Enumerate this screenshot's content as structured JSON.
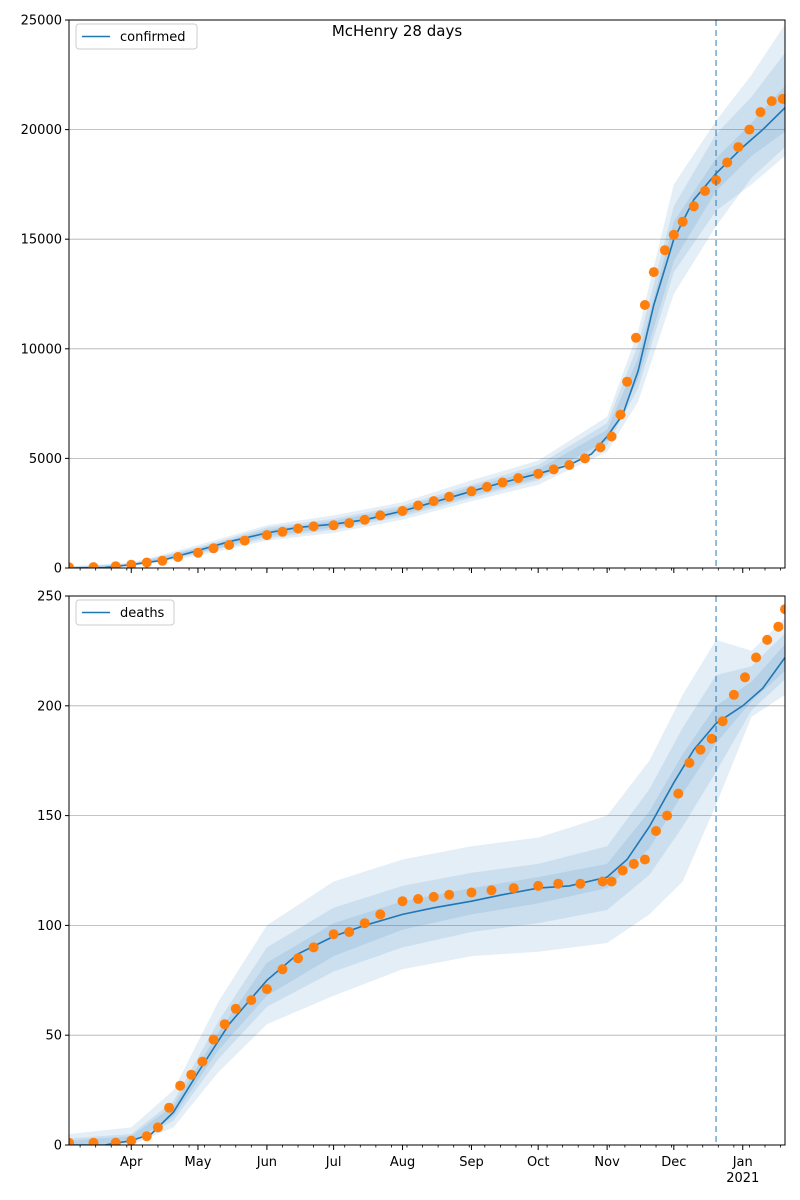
{
  "figure": {
    "title": "McHenry 28 days"
  },
  "colors": {
    "line": "#1f77b4",
    "points": "#ff7f0e",
    "band": "#1f77b4",
    "grid": "#b0b0b0",
    "axis": "#000000"
  },
  "chart_data": [
    {
      "type": "line",
      "panel": "top",
      "legend": {
        "label": "confirmed",
        "placement": "upper left"
      },
      "x_axis": {
        "type": "date",
        "range": [
          "2020-03-04",
          "2021-01-20"
        ],
        "tick_labels": [
          {
            "date": "2020-04-01",
            "label": "Apr"
          },
          {
            "date": "2020-05-01",
            "label": "May"
          },
          {
            "date": "2020-06-01",
            "label": "Jun"
          },
          {
            "date": "2020-07-01",
            "label": "Jul"
          },
          {
            "date": "2020-08-01",
            "label": "Aug"
          },
          {
            "date": "2020-09-01",
            "label": "Sep"
          },
          {
            "date": "2020-10-01",
            "label": "Oct"
          },
          {
            "date": "2020-11-01",
            "label": "Nov"
          },
          {
            "date": "2020-12-01",
            "label": "Dec"
          },
          {
            "date": "2021-01-01",
            "label": "Jan\n2021"
          }
        ]
      },
      "y_axis": {
        "range": [
          0,
          25000
        ],
        "ticks": [
          0,
          5000,
          10000,
          15000,
          20000,
          25000
        ],
        "grid": true
      },
      "forecast_start": "2020-12-20",
      "series": [
        {
          "name": "confirmed",
          "style": "line",
          "x": [
            "2020-03-04",
            "2020-03-20",
            "2020-04-01",
            "2020-04-15",
            "2020-05-01",
            "2020-05-15",
            "2020-06-01",
            "2020-06-15",
            "2020-07-01",
            "2020-07-15",
            "2020-08-01",
            "2020-08-15",
            "2020-09-01",
            "2020-09-15",
            "2020-10-01",
            "2020-10-15",
            "2020-10-25",
            "2020-11-01",
            "2020-11-08",
            "2020-11-15",
            "2020-11-22",
            "2020-12-01",
            "2020-12-10",
            "2020-12-20",
            "2021-01-01",
            "2021-01-10",
            "2021-01-20"
          ],
          "y": [
            0,
            20,
            150,
            350,
            800,
            1200,
            1600,
            1850,
            2000,
            2200,
            2600,
            3000,
            3500,
            3900,
            4300,
            4700,
            5200,
            6000,
            7000,
            9000,
            12000,
            15000,
            16800,
            18000,
            19200,
            20000,
            21000
          ]
        },
        {
          "name": "observed",
          "style": "points",
          "x": [
            "2020-03-04",
            "2020-03-15",
            "2020-03-25",
            "2020-04-01",
            "2020-04-08",
            "2020-04-15",
            "2020-04-22",
            "2020-05-01",
            "2020-05-08",
            "2020-05-15",
            "2020-05-22",
            "2020-06-01",
            "2020-06-08",
            "2020-06-15",
            "2020-06-22",
            "2020-07-01",
            "2020-07-08",
            "2020-07-15",
            "2020-07-22",
            "2020-08-01",
            "2020-08-08",
            "2020-08-15",
            "2020-08-22",
            "2020-09-01",
            "2020-09-08",
            "2020-09-15",
            "2020-09-22",
            "2020-10-01",
            "2020-10-08",
            "2020-10-15",
            "2020-10-22",
            "2020-10-29",
            "2020-11-03",
            "2020-11-07",
            "2020-11-10",
            "2020-11-14",
            "2020-11-18",
            "2020-11-22",
            "2020-11-27",
            "2020-12-01",
            "2020-12-05",
            "2020-12-10",
            "2020-12-15",
            "2020-12-20",
            "2020-12-25",
            "2020-12-30",
            "2021-01-04",
            "2021-01-09",
            "2021-01-14",
            "2021-01-19"
          ],
          "y": [
            30,
            40,
            80,
            150,
            250,
            330,
            500,
            700,
            900,
            1050,
            1250,
            1500,
            1650,
            1800,
            1900,
            1950,
            2050,
            2200,
            2400,
            2600,
            2850,
            3050,
            3250,
            3500,
            3700,
            3900,
            4100,
            4300,
            4500,
            4700,
            5000,
            5500,
            6000,
            7000,
            8500,
            10500,
            12000,
            13500,
            14500,
            15200,
            15800,
            16500,
            17200,
            17700,
            18500,
            19200,
            20000,
            20800,
            21300,
            21400
          ]
        }
      ],
      "bands": [
        {
          "x": [
            "2020-03-04",
            "2020-04-01",
            "2020-05-01",
            "2020-06-01",
            "2020-07-01",
            "2020-08-01",
            "2020-09-01",
            "2020-10-01",
            "2020-11-01",
            "2020-11-15",
            "2020-12-01",
            "2020-12-20",
            "2021-01-05",
            "2021-01-20"
          ],
          "lo": [
            0,
            100,
            650,
            1350,
            1750,
            2350,
            3200,
            4000,
            5600,
            8200,
            13500,
            16300,
            17500,
            18800
          ],
          "hi": [
            60,
            200,
            950,
            1850,
            2250,
            2850,
            3800,
            4700,
            6600,
            10200,
            16500,
            19800,
            21500,
            23500
          ]
        },
        {
          "x": [
            "2020-03-04",
            "2020-04-01",
            "2020-05-01",
            "2020-06-01",
            "2020-07-01",
            "2020-08-01",
            "2020-09-01",
            "2020-10-01",
            "2020-11-01",
            "2020-11-15",
            "2020-12-01",
            "2020-12-20",
            "2021-01-05",
            "2021-01-20"
          ],
          "lo": [
            0,
            80,
            550,
            1250,
            1600,
            2200,
            3050,
            3800,
            5300,
            7600,
            12500,
            15600,
            17800,
            19200
          ],
          "hi": [
            80,
            240,
            1050,
            1950,
            2400,
            3000,
            4000,
            4900,
            6900,
            10800,
            17500,
            20400,
            22500,
            24800
          ]
        },
        {
          "x": [
            "2020-03-04",
            "2020-04-01",
            "2020-05-01",
            "2020-06-01",
            "2020-07-01",
            "2020-08-01",
            "2020-09-01",
            "2020-10-01",
            "2020-11-01",
            "2020-11-15",
            "2020-12-01",
            "2020-12-20",
            "2021-01-05",
            "2021-01-20"
          ],
          "lo": [
            0,
            120,
            700,
            1450,
            1850,
            2450,
            3300,
            4100,
            5800,
            8600,
            14000,
            17200,
            18800,
            19900
          ],
          "hi": [
            40,
            180,
            900,
            1750,
            2150,
            2750,
            3700,
            4500,
            6300,
            9600,
            15800,
            18700,
            20300,
            22000
          ]
        }
      ]
    },
    {
      "type": "line",
      "panel": "bottom",
      "legend": {
        "label": "deaths",
        "placement": "upper left"
      },
      "x_axis": {
        "type": "date",
        "range": [
          "2020-03-04",
          "2021-01-20"
        ],
        "tick_labels": [
          {
            "date": "2020-04-01",
            "label": "Apr"
          },
          {
            "date": "2020-05-01",
            "label": "May"
          },
          {
            "date": "2020-06-01",
            "label": "Jun"
          },
          {
            "date": "2020-07-01",
            "label": "Jul"
          },
          {
            "date": "2020-08-01",
            "label": "Aug"
          },
          {
            "date": "2020-09-01",
            "label": "Sep"
          },
          {
            "date": "2020-10-01",
            "label": "Oct"
          },
          {
            "date": "2020-11-01",
            "label": "Nov"
          },
          {
            "date": "2020-12-01",
            "label": "Dec"
          },
          {
            "date": "2021-01-01",
            "label": "Jan\n2021"
          }
        ]
      },
      "y_axis": {
        "range": [
          0,
          250
        ],
        "ticks": [
          0,
          50,
          100,
          150,
          200,
          250
        ],
        "grid": true
      },
      "forecast_start": "2020-12-20",
      "series": [
        {
          "name": "deaths",
          "style": "line",
          "x": [
            "2020-03-04",
            "2020-03-20",
            "2020-04-01",
            "2020-04-10",
            "2020-04-20",
            "2020-05-01",
            "2020-05-15",
            "2020-06-01",
            "2020-06-15",
            "2020-07-01",
            "2020-07-15",
            "2020-08-01",
            "2020-08-15",
            "2020-09-01",
            "2020-09-15",
            "2020-10-01",
            "2020-10-15",
            "2020-11-01",
            "2020-11-10",
            "2020-11-20",
            "2020-12-01",
            "2020-12-10",
            "2020-12-20",
            "2021-01-01",
            "2021-01-10",
            "2021-01-20"
          ],
          "y": [
            0,
            0,
            2,
            5,
            15,
            33,
            55,
            75,
            87,
            95,
            100,
            105,
            108,
            111,
            114,
            117,
            118,
            122,
            130,
            145,
            165,
            180,
            192,
            200,
            208,
            222
          ]
        },
        {
          "name": "observed",
          "style": "points",
          "x": [
            "2020-03-04",
            "2020-03-15",
            "2020-03-25",
            "2020-04-01",
            "2020-04-08",
            "2020-04-13",
            "2020-04-18",
            "2020-04-23",
            "2020-04-28",
            "2020-05-03",
            "2020-05-08",
            "2020-05-13",
            "2020-05-18",
            "2020-05-25",
            "2020-06-01",
            "2020-06-08",
            "2020-06-15",
            "2020-06-22",
            "2020-07-01",
            "2020-07-08",
            "2020-07-15",
            "2020-07-22",
            "2020-08-01",
            "2020-08-08",
            "2020-08-15",
            "2020-08-22",
            "2020-09-01",
            "2020-09-10",
            "2020-09-20",
            "2020-10-01",
            "2020-10-10",
            "2020-10-20",
            "2020-10-30",
            "2020-11-03",
            "2020-11-08",
            "2020-11-13",
            "2020-11-18",
            "2020-11-23",
            "2020-11-28",
            "2020-12-03",
            "2020-12-08",
            "2020-12-13",
            "2020-12-18",
            "2020-12-23",
            "2020-12-28",
            "2021-01-02",
            "2021-01-07",
            "2021-01-12",
            "2021-01-17",
            "2021-01-20"
          ],
          "y": [
            1,
            1,
            1,
            2,
            4,
            8,
            17,
            27,
            32,
            38,
            48,
            55,
            62,
            66,
            71,
            80,
            85,
            90,
            96,
            97,
            101,
            105,
            111,
            112,
            113,
            114,
            115,
            116,
            117,
            118,
            119,
            119,
            120,
            120,
            125,
            128,
            130,
            143,
            150,
            160,
            174,
            180,
            185,
            193,
            205,
            213,
            222,
            230,
            236,
            244
          ]
        }
      ],
      "bands": [
        {
          "x": [
            "2020-03-04",
            "2020-04-01",
            "2020-04-20",
            "2020-05-10",
            "2020-06-01",
            "2020-07-01",
            "2020-08-01",
            "2020-09-01",
            "2020-10-01",
            "2020-11-01",
            "2020-11-20",
            "2020-12-05",
            "2020-12-20",
            "2021-01-05",
            "2021-01-20"
          ],
          "lo": [
            0,
            0,
            8,
            33,
            55,
            68,
            80,
            86,
            88,
            92,
            105,
            120,
            155,
            195,
            205
          ],
          "hi": [
            5,
            8,
            25,
            65,
            100,
            120,
            130,
            136,
            140,
            150,
            175,
            205,
            230,
            225,
            240
          ]
        },
        {
          "x": [
            "2020-03-04",
            "2020-04-01",
            "2020-04-20",
            "2020-05-10",
            "2020-06-01",
            "2020-07-01",
            "2020-08-01",
            "2020-09-01",
            "2020-10-01",
            "2020-11-01",
            "2020-11-20",
            "2020-12-05",
            "2020-12-20",
            "2021-01-05",
            "2021-01-20"
          ],
          "lo": [
            0,
            1,
            11,
            39,
            63,
            79,
            90,
            97,
            101,
            107,
            123,
            145,
            170,
            198,
            212
          ],
          "hi": [
            3,
            5,
            20,
            56,
            90,
            108,
            118,
            124,
            128,
            136,
            162,
            190,
            214,
            218,
            233
          ]
        },
        {
          "x": [
            "2020-03-04",
            "2020-04-01",
            "2020-04-20",
            "2020-05-10",
            "2020-06-01",
            "2020-07-01",
            "2020-08-01",
            "2020-09-01",
            "2020-10-01",
            "2020-11-01",
            "2020-11-20",
            "2020-12-05",
            "2020-12-20",
            "2021-01-05",
            "2021-01-20"
          ],
          "lo": [
            0,
            1,
            13,
            43,
            68,
            86,
            98,
            105,
            110,
            117,
            135,
            160,
            183,
            202,
            216
          ],
          "hi": [
            2,
            4,
            18,
            51,
            83,
            101,
            111,
            117,
            122,
            128,
            152,
            178,
            200,
            211,
            228
          ]
        }
      ]
    }
  ]
}
